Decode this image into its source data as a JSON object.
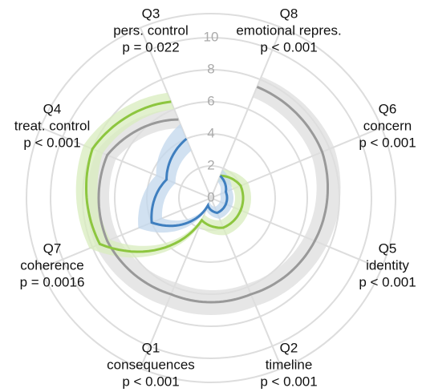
{
  "chart_data": {
    "type": "radar",
    "categories": [
      "Q8",
      "Q6",
      "Q5",
      "Q2",
      "Q1",
      "Q7",
      "Q4",
      "Q3"
    ],
    "descriptions": [
      "emotional repres.",
      "concern",
      "identity",
      "timeline",
      "consequences",
      "coherence",
      "treat. control",
      "pers. control"
    ],
    "p_values": [
      "p < 0.001",
      "p < 0.001",
      "p < 0.001",
      "p < 0.001",
      "p < 0.001",
      "p = 0.0016",
      "p < 0.001",
      "p = 0.022"
    ],
    "ylim": [
      0,
      11.5
    ],
    "yticks": [
      0,
      2,
      4,
      6,
      8,
      10
    ],
    "grid": true,
    "series": [
      {
        "color": "#999999",
        "band_color": "#dddddd",
        "values": [
          7.5,
          7.5,
          7,
          6.5,
          6.5,
          7,
          7,
          5.3
        ],
        "lower": [
          6.8,
          6.8,
          6.3,
          5.8,
          5.7,
          6.3,
          6.4,
          4.7
        ],
        "upper": [
          8.2,
          8.3,
          7.8,
          7.3,
          7.3,
          7.8,
          7.7,
          6
        ],
        "name": null
      },
      {
        "color": "#8dc63f",
        "band_color": "#d8ecbd",
        "values": [
          1.5,
          2,
          2,
          2,
          1.5,
          7.5,
          8,
          6.5
        ],
        "lower": [
          1.1,
          1.5,
          1.5,
          1.5,
          1.1,
          6.8,
          7.3,
          6
        ],
        "upper": [
          1.9,
          2.5,
          2.5,
          2.5,
          1.9,
          8.2,
          8.6,
          7.1
        ],
        "name": null
      },
      {
        "color": "#3f7fbf",
        "band_color": "#c2d7ec",
        "values": [
          1.5,
          1,
          1,
          1,
          0.5,
          4,
          3,
          4
        ],
        "lower": [
          1.1,
          0.6,
          0.6,
          0.6,
          0.2,
          3.3,
          2.4,
          3.2
        ],
        "upper": [
          1.9,
          1.4,
          1.4,
          1.4,
          0.8,
          4.9,
          3.7,
          5
        ],
        "name": null
      }
    ]
  }
}
